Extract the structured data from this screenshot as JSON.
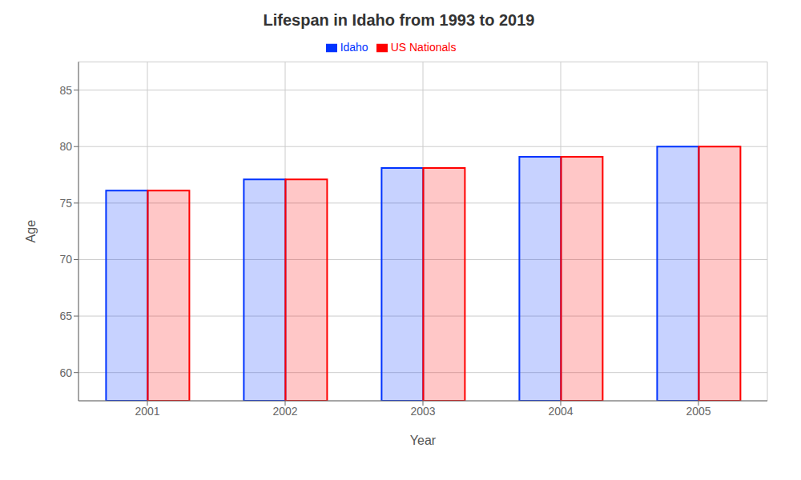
{
  "chart_data": {
    "type": "bar",
    "title": "Lifespan in Idaho from 1993 to 2019",
    "x_label": "Year",
    "y_label": "Age",
    "categories": [
      "2001",
      "2002",
      "2003",
      "2004",
      "2005"
    ],
    "series": [
      {
        "name": "Idaho",
        "color": "#0033ff",
        "values": [
          76.1,
          77.1,
          78.1,
          79.1,
          80.0
        ]
      },
      {
        "name": "US Nationals",
        "color": "#ff0000",
        "values": [
          76.1,
          77.1,
          78.1,
          79.1,
          80.0
        ]
      }
    ],
    "ylim": [
      57.5,
      87.5
    ],
    "yticks": [
      60,
      65,
      70,
      75,
      80,
      85
    ],
    "grid": true,
    "legend": "top"
  }
}
